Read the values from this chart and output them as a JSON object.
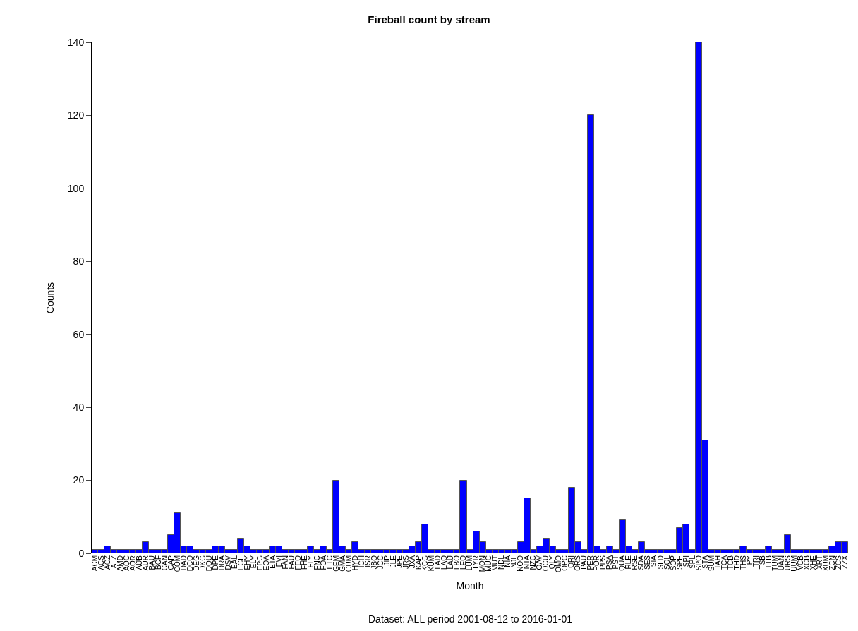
{
  "chart_data": {
    "type": "bar",
    "title": "Fireball count by stream",
    "xlabel": "Month",
    "ylabel": "Counts",
    "annotations": [
      "Dataset: ALL period 2001-08-12 to 2016-01-01"
    ],
    "categories": [
      "ACM",
      "ACS",
      "ACZ",
      "ALZ",
      "AMD",
      "AQC",
      "AQR",
      "AUB",
      "AUR",
      "BAU",
      "BCF",
      "CAN",
      "CAP",
      "COM",
      "DAD",
      "DCO",
      "DEG",
      "DKG",
      "DOU",
      "DPE",
      "DRA",
      "DSV",
      "EAL",
      "EGE",
      "EHY",
      "ELY",
      "EPG",
      "EQA",
      "ETA",
      "EVI",
      "FAN",
      "FAU",
      "FEQ",
      "FHE",
      "FLY",
      "FNC",
      "FOA",
      "FTC",
      "GEM",
      "GMA",
      "GUM",
      "HYD",
      "ICH",
      "ISR",
      "JBO",
      "JCC",
      "JIP",
      "JLE",
      "JPE",
      "JRS",
      "JXA",
      "KAP",
      "KCG",
      "KUM",
      "LAD",
      "LAQ",
      "LAU",
      "LBO",
      "LEO",
      "LUM",
      "LYR",
      "MON",
      "MUC",
      "MUT",
      "NDL",
      "NIA",
      "NJL",
      "NOO",
      "NTA",
      "NZC",
      "OAV",
      "OCU",
      "OLY",
      "OMO",
      "OPC",
      "ORI",
      "ORS",
      "PAU",
      "PER",
      "POR",
      "PPS",
      "PSA",
      "PST",
      "QUA",
      "RLE",
      "RSE",
      "SDA",
      "SES",
      "SIA",
      "SLD",
      "SOL",
      "SOP",
      "SPE",
      "SPI",
      "SPL",
      "SPO",
      "STA",
      "SUM",
      "TAH",
      "TCA",
      "TCB",
      "THD",
      "THS",
      "TPY",
      "TRI",
      "TSB",
      "TTB",
      "TUM",
      "UAN",
      "URS",
      "UUM",
      "VCB",
      "XCB",
      "XHE",
      "XRT",
      "XUM",
      "ZCN",
      "ZCS",
      "ZZX"
    ],
    "values": [
      1,
      1,
      2,
      1,
      1,
      1,
      1,
      1,
      3,
      1,
      1,
      1,
      5,
      11,
      2,
      2,
      1,
      1,
      1,
      2,
      2,
      1,
      1,
      4,
      2,
      1,
      1,
      1,
      2,
      2,
      1,
      1,
      1,
      1,
      2,
      1,
      2,
      1,
      20,
      2,
      1,
      3,
      1,
      1,
      1,
      1,
      1,
      1,
      1,
      1,
      2,
      3,
      8,
      1,
      1,
      1,
      1,
      1,
      20,
      1,
      6,
      3,
      1,
      1,
      1,
      1,
      1,
      3,
      15,
      1,
      2,
      4,
      2,
      1,
      1,
      18,
      3,
      1,
      120,
      2,
      1,
      2,
      1,
      9,
      2,
      1,
      3,
      1,
      1,
      1,
      1,
      1,
      7,
      8,
      1,
      140,
      31,
      1,
      1,
      1,
      1,
      1,
      2,
      1,
      1,
      1,
      2,
      1,
      1,
      5,
      1,
      1,
      1,
      1,
      1,
      1,
      2,
      3,
      3
    ],
    "color": "#0000ff",
    "ylim": [
      0,
      140
    ],
    "yticks": [
      0,
      20,
      40,
      60,
      80,
      100,
      120,
      140
    ],
    "legend": false
  }
}
